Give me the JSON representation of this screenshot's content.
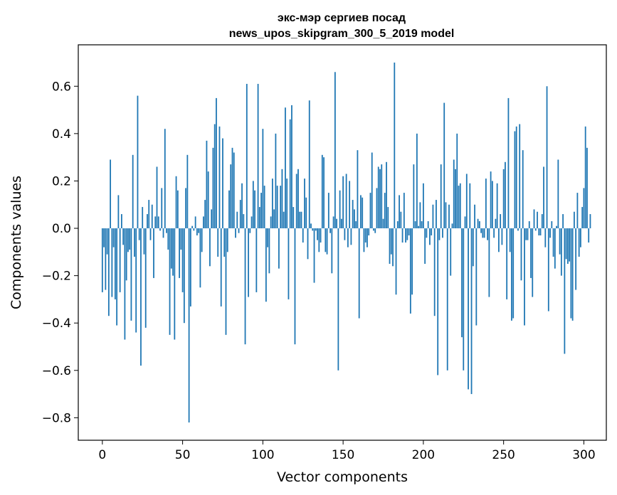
{
  "chart_data": {
    "type": "bar",
    "title_line1": "экс-мэр сергиев посад",
    "title_line2": "news_upos_skipgram_300_5_2019 model",
    "xlabel": "Vector components",
    "ylabel": "Components values",
    "xlim": [
      -15,
      314
    ],
    "ylim": [
      -0.895,
      0.775
    ],
    "xticks": [
      0,
      50,
      100,
      150,
      200,
      250,
      300
    ],
    "xtick_labels": [
      "0",
      "50",
      "100",
      "150",
      "200",
      "250",
      "300"
    ],
    "yticks": [
      -0.8,
      -0.6,
      -0.4,
      -0.2,
      0.0,
      0.2,
      0.4,
      0.6
    ],
    "ytick_labels": [
      "−0.8",
      "−0.6",
      "−0.4",
      "−0.2",
      "0.0",
      "0.2",
      "0.4",
      "0.6"
    ],
    "bar_color": "#1f77b4",
    "grid": false,
    "values": [
      -0.27,
      -0.08,
      -0.26,
      -0.11,
      -0.37,
      0.29,
      -0.29,
      -0.08,
      -0.3,
      -0.41,
      0.14,
      -0.27,
      0.06,
      -0.07,
      -0.47,
      -0.22,
      -0.1,
      -0.09,
      -0.39,
      0.31,
      -0.12,
      -0.44,
      0.56,
      -0.05,
      -0.58,
      0.09,
      -0.11,
      -0.42,
      0.06,
      0.12,
      -0.05,
      0.1,
      -0.21,
      0.05,
      0.26,
      0.05,
      -0.01,
      0.17,
      -0.04,
      0.42,
      -0.02,
      -0.09,
      -0.45,
      -0.17,
      -0.2,
      -0.47,
      0.22,
      0.16,
      -0.21,
      -0.09,
      -0.27,
      -0.4,
      0.17,
      0.31,
      -0.82,
      -0.33,
      0.01,
      -0.01,
      0.05,
      -0.03,
      -0.02,
      -0.25,
      -0.1,
      0.05,
      0.12,
      0.37,
      0.24,
      -0.16,
      0.08,
      0.34,
      0.44,
      0.55,
      -0.12,
      0.43,
      -0.33,
      0.38,
      -0.12,
      -0.45,
      -0.1,
      0.16,
      0.27,
      0.34,
      0.32,
      -0.04,
      0.07,
      -0.02,
      0.12,
      0.19,
      0.06,
      -0.49,
      0.61,
      -0.29,
      -0.02,
      0.05,
      0.2,
      0.16,
      -0.27,
      0.61,
      0.09,
      0.15,
      0.42,
      0.18,
      -0.31,
      -0.08,
      -0.19,
      0.05,
      0.21,
      0.08,
      0.4,
      0.18,
      -0.17,
      0.18,
      0.25,
      0.07,
      0.51,
      0.21,
      -0.3,
      0.46,
      0.52,
      0.09,
      -0.49,
      0.23,
      0.25,
      0.07,
      0.07,
      -0.06,
      0.21,
      0.13,
      -0.13,
      0.54,
      0.02,
      -0.01,
      -0.23,
      -0.01,
      -0.05,
      -0.1,
      -0.06,
      0.31,
      0.3,
      -0.1,
      -0.11,
      0.15,
      -0.02,
      -0.19,
      0.05,
      0.66,
      0.04,
      -0.6,
      0.16,
      0.04,
      0.22,
      -0.05,
      0.23,
      -0.08,
      0.2,
      -0.07,
      0.12,
      0.08,
      0.03,
      0.33,
      -0.38,
      0.14,
      0.13,
      -0.1,
      -0.06,
      -0.08,
      -0.03,
      0.15,
      0.32,
      -0.01,
      -0.02,
      0.17,
      0.26,
      0.25,
      0.27,
      0.04,
      0.15,
      0.28,
      0.09,
      -0.15,
      -0.11,
      -0.16,
      0.7,
      -0.28,
      0.03,
      0.14,
      0.07,
      -0.06,
      0.15,
      -0.06,
      -0.05,
      -0.03,
      -0.36,
      -0.28,
      0.27,
      0.03,
      0.4,
      0.01,
      0.11,
      0.03,
      0.19,
      -0.15,
      -0.04,
      0.03,
      -0.07,
      -0.03,
      0.1,
      -0.37,
      0.12,
      -0.62,
      -0.05,
      0.27,
      -0.04,
      0.53,
      0.11,
      -0.6,
      0.1,
      -0.2,
      0.02,
      0.29,
      0.25,
      0.4,
      0.18,
      0.19,
      -0.46,
      -0.6,
      0.05,
      0.23,
      -0.68,
      0.19,
      -0.7,
      -0.16,
      0.1,
      -0.41,
      0.04,
      0.03,
      -0.02,
      -0.04,
      -0.04,
      0.21,
      -0.05,
      -0.29,
      0.24,
      0.2,
      -0.04,
      0.04,
      0.19,
      -0.1,
      0.06,
      -0.07,
      0.25,
      0.28,
      -0.3,
      0.55,
      -0.1,
      -0.39,
      -0.38,
      0.41,
      0.43,
      -0.01,
      0.44,
      -0.22,
      0.33,
      -0.41,
      -0.05,
      -0.05,
      0.03,
      -0.21,
      -0.29,
      0.08,
      -0.01,
      0.07,
      -0.03,
      -0.03,
      0.06,
      0.26,
      -0.08,
      0.6,
      -0.35,
      -0.04,
      0.03,
      -0.12,
      -0.17,
      0.01,
      0.29,
      -0.11,
      -0.2,
      0.06,
      -0.53,
      -0.13,
      -0.15,
      -0.14,
      -0.38,
      -0.39,
      0.07,
      -0.26,
      0.15,
      -0.12,
      -0.08,
      0.09,
      0.17,
      0.43,
      0.34,
      -0.06,
      0.06
    ]
  }
}
